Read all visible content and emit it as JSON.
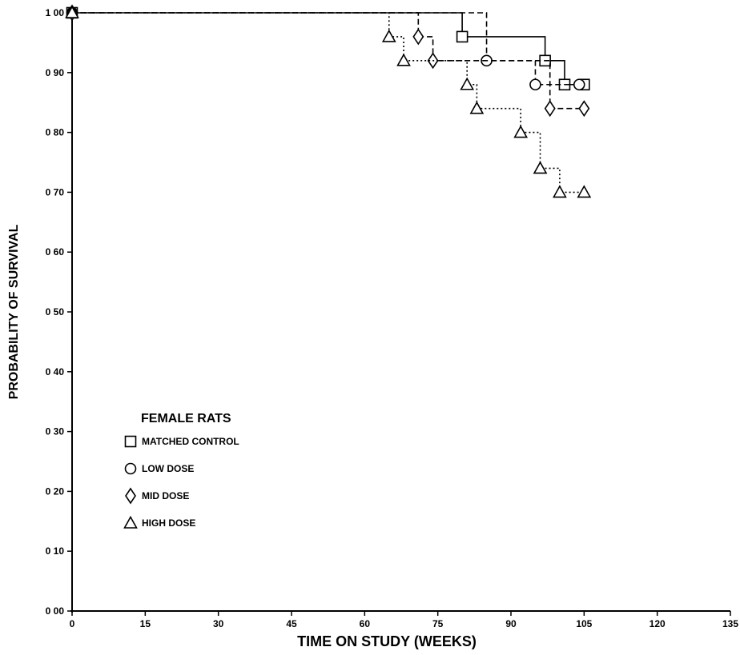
{
  "chart_data": {
    "type": "line",
    "subtype": "step",
    "title": "",
    "xlabel": "TIME ON STUDY (WEEKS)",
    "ylabel": "PROBABILITY OF SURVIVAL",
    "xlim": [
      0,
      135
    ],
    "ylim": [
      0,
      1.0
    ],
    "x_ticks": [
      0,
      15,
      30,
      45,
      60,
      75,
      90,
      105,
      120,
      135
    ],
    "x_tick_labels": [
      "0",
      "15",
      "30",
      "45",
      "60",
      "75",
      "90",
      "105",
      "120",
      "135"
    ],
    "y_ticks": [
      0,
      0.1,
      0.2,
      0.3,
      0.4,
      0.5,
      0.6,
      0.7,
      0.8,
      0.9,
      1.0
    ],
    "y_tick_labels": [
      "0 00",
      "0 10",
      "0 20",
      "0 30",
      "0 40",
      "0 50",
      "0 60",
      "0 70",
      "0 80",
      "0 90",
      "1 00"
    ],
    "grid": false,
    "legend": {
      "title": "FEMALE RATS",
      "placement": "lower-left"
    },
    "series": [
      {
        "name": "MATCHED CONTROL",
        "marker": "square",
        "line_style": "solid",
        "x": [
          0,
          80,
          97,
          101,
          105
        ],
        "y": [
          1.0,
          0.96,
          0.92,
          0.88,
          0.88
        ]
      },
      {
        "name": "LOW DOSE",
        "marker": "circle",
        "line_style": "dashed",
        "x": [
          0,
          85,
          95,
          104
        ],
        "y": [
          1.0,
          0.92,
          0.88,
          0.88
        ]
      },
      {
        "name": "MID DOSE",
        "marker": "diamond",
        "line_style": "dashed",
        "x": [
          0,
          71,
          74,
          98,
          105
        ],
        "y": [
          1.0,
          0.96,
          0.92,
          0.84,
          0.84
        ]
      },
      {
        "name": "HIGH DOSE",
        "marker": "triangle",
        "line_style": "dotted",
        "x": [
          0,
          65,
          68,
          81,
          83,
          92,
          96,
          100,
          105
        ],
        "y": [
          1.0,
          0.96,
          0.92,
          0.88,
          0.84,
          0.8,
          0.74,
          0.7,
          0.7
        ]
      }
    ]
  }
}
